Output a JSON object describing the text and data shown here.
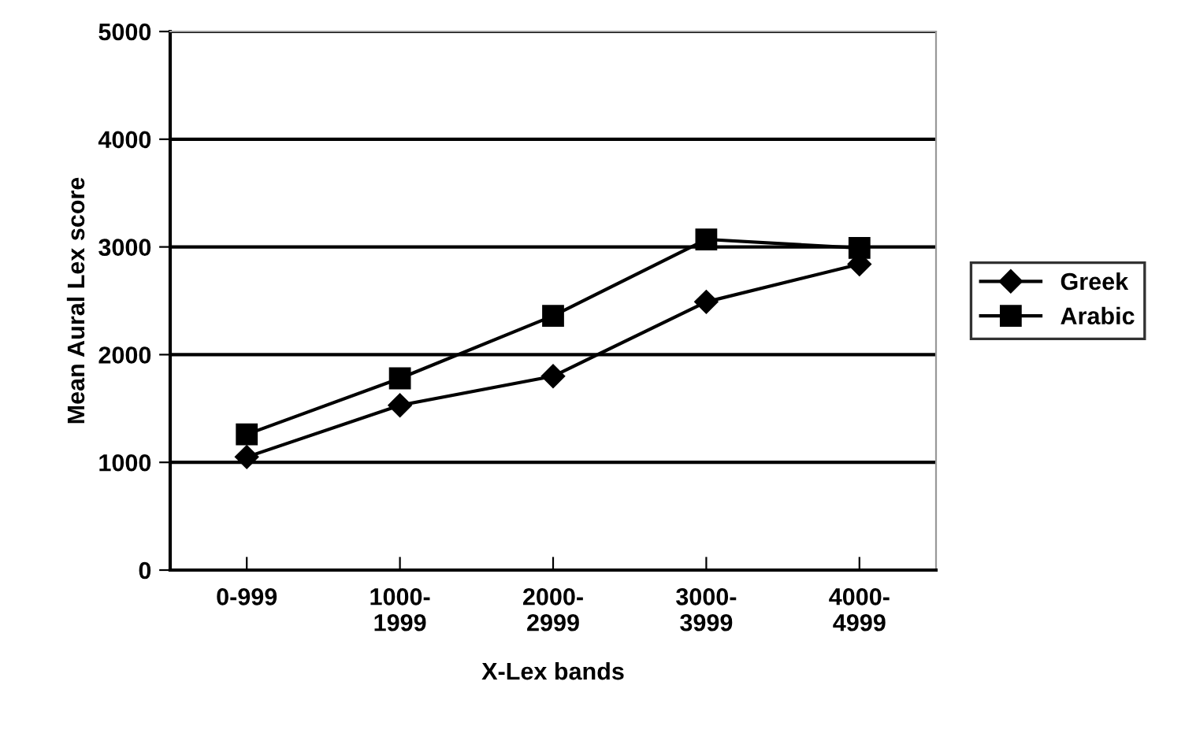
{
  "chart_data": {
    "type": "line",
    "xlabel": "X-Lex bands",
    "ylabel": "Mean Aural Lex score",
    "categories": [
      "0-999",
      "1000-\n1999",
      "2000-\n2999",
      "3000-\n3999",
      "4000-\n4999"
    ],
    "series": [
      {
        "name": "Greek",
        "color": "#000000",
        "marker": "diamond",
        "values": [
          1050,
          1530,
          1800,
          2490,
          2840
        ]
      },
      {
        "name": "Arabic",
        "color": "#000000",
        "marker": "square",
        "values": [
          1260,
          1780,
          2360,
          3070,
          2990
        ]
      }
    ],
    "ylim": [
      0,
      5000
    ],
    "yticks": [
      0,
      1000,
      2000,
      3000,
      4000,
      5000
    ],
    "grid": "y",
    "legend": "right",
    "line_style": "solid"
  }
}
